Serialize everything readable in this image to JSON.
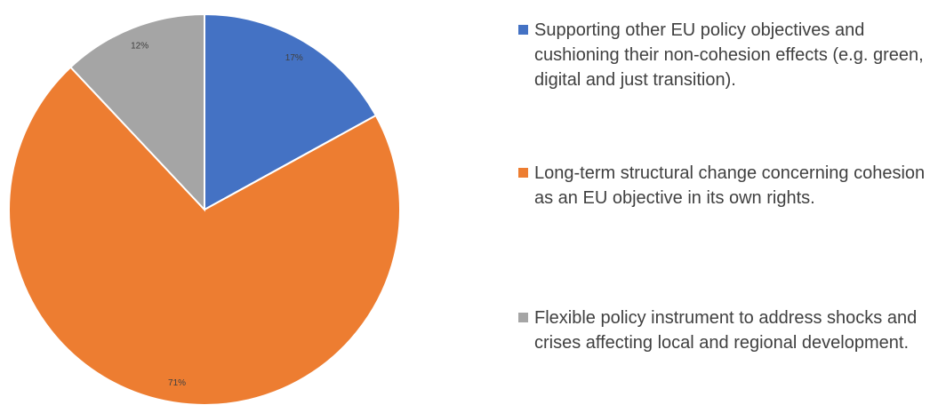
{
  "chart_data": {
    "type": "pie",
    "categories": [
      "Supporting other EU policy objectives and cushioning their non-cohesion effects (e.g. green, digital and just transition).",
      "Long-term structural change concerning cohesion as an EU objective in its own rights.",
      "Flexible policy instrument to address shocks and crises affecting local and regional development."
    ],
    "values": [
      17,
      71,
      12
    ],
    "value_labels": [
      "17%",
      "71%",
      "12%"
    ],
    "colors": [
      "#4472c4",
      "#ed7d31",
      "#a5a5a5"
    ],
    "legend": "right"
  }
}
